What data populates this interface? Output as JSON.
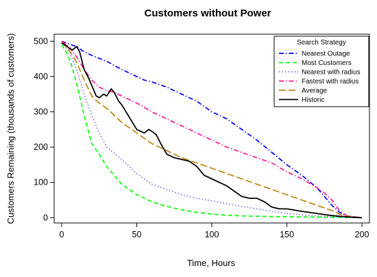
{
  "chart_data": {
    "type": "line",
    "title": "Customers without Power",
    "xlabel": "Time, Hours",
    "ylabel": "Customers Remaining (thousands of customers)",
    "xlim": [
      -5,
      205
    ],
    "ylim": [
      -15,
      520
    ],
    "xticks": [
      0,
      50,
      100,
      150,
      200
    ],
    "yticks": [
      0,
      100,
      200,
      300,
      400,
      500
    ],
    "grid": false,
    "legend": {
      "title": "Search Strategy",
      "placement": "top-right"
    },
    "series": [
      {
        "name": "Nearest Outage",
        "color": "#0000ff",
        "dash": "dashdot",
        "x": [
          0,
          5,
          10,
          15,
          20,
          30,
          40,
          50,
          55,
          60,
          70,
          80,
          90,
          100,
          110,
          120,
          130,
          140,
          150,
          160,
          170,
          175,
          180,
          185,
          190,
          195,
          200
        ],
        "y": [
          500,
          492,
          485,
          470,
          460,
          443,
          420,
          400,
          390,
          385,
          370,
          350,
          330,
          300,
          280,
          250,
          220,
          185,
          150,
          120,
          85,
          60,
          35,
          15,
          5,
          2,
          0
        ]
      },
      {
        "name": "Most Customers",
        "color": "#00ff00",
        "dash": "dashed",
        "x": [
          0,
          3,
          6,
          10,
          15,
          20,
          25,
          30,
          40,
          50,
          60,
          70,
          80,
          90,
          100,
          110,
          120,
          140,
          160,
          180,
          200
        ],
        "y": [
          490,
          470,
          440,
          380,
          290,
          210,
          180,
          145,
          95,
          65,
          45,
          32,
          22,
          15,
          10,
          7,
          5,
          3,
          2,
          1,
          0
        ]
      },
      {
        "name": "Nearest with radius",
        "color": "#7b68ee",
        "dash": "dotted",
        "x": [
          0,
          5,
          10,
          15,
          20,
          25,
          30,
          40,
          50,
          60,
          70,
          80,
          90,
          100,
          110,
          120,
          130,
          140,
          150,
          160,
          170,
          180,
          190,
          200
        ],
        "y": [
          495,
          470,
          420,
          350,
          290,
          240,
          200,
          165,
          125,
          95,
          80,
          65,
          55,
          48,
          40,
          32,
          25,
          18,
          12,
          8,
          5,
          3,
          1,
          0
        ]
      },
      {
        "name": "Fastest with radius",
        "color": "#ff1493",
        "dash": "dashdot",
        "x": [
          0,
          5,
          10,
          15,
          20,
          25,
          30,
          35,
          40,
          50,
          60,
          70,
          80,
          90,
          100,
          110,
          120,
          130,
          140,
          150,
          160,
          170,
          175,
          180,
          185,
          190,
          200
        ],
        "y": [
          500,
          485,
          455,
          420,
          390,
          370,
          360,
          355,
          345,
          325,
          300,
          280,
          260,
          240,
          220,
          200,
          185,
          170,
          155,
          130,
          110,
          85,
          70,
          50,
          20,
          5,
          0
        ]
      },
      {
        "name": "Average",
        "color": "#b8860b",
        "dash": "longdash",
        "x": [
          0,
          5,
          10,
          15,
          20,
          25,
          30,
          40,
          50,
          60,
          70,
          80,
          90,
          100,
          110,
          120,
          130,
          140,
          150,
          160,
          170,
          180,
          185,
          190,
          200
        ],
        "y": [
          497,
          475,
          440,
          390,
          345,
          325,
          310,
          270,
          240,
          210,
          190,
          170,
          155,
          140,
          125,
          110,
          95,
          80,
          65,
          50,
          35,
          20,
          10,
          4,
          0
        ]
      },
      {
        "name": "Historic",
        "color": "#000000",
        "dash": "solid",
        "x": [
          0,
          3,
          5,
          7,
          10,
          12,
          15,
          18,
          20,
          23,
          25,
          28,
          30,
          33,
          35,
          38,
          40,
          45,
          50,
          55,
          58,
          60,
          63,
          66,
          70,
          75,
          80,
          85,
          90,
          95,
          100,
          105,
          110,
          115,
          120,
          125,
          130,
          135,
          140,
          145,
          150,
          160,
          170,
          180,
          190,
          200
        ],
        "y": [
          495,
          488,
          480,
          475,
          485,
          470,
          420,
          395,
          375,
          345,
          340,
          350,
          345,
          365,
          355,
          330,
          320,
          285,
          250,
          240,
          250,
          245,
          235,
          210,
          180,
          170,
          165,
          160,
          145,
          120,
          110,
          100,
          90,
          75,
          60,
          55,
          55,
          45,
          30,
          25,
          25,
          18,
          12,
          6,
          2,
          0
        ]
      }
    ]
  }
}
